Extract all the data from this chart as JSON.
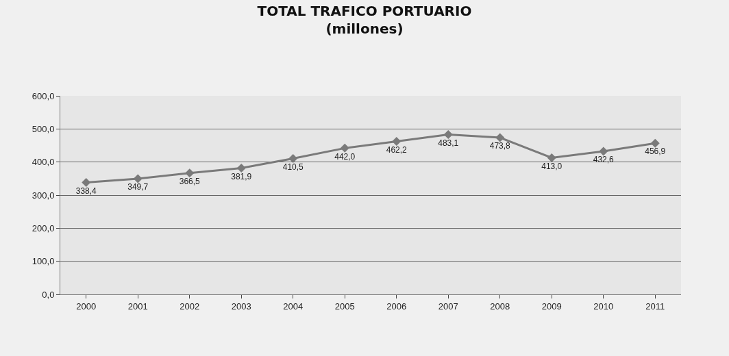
{
  "chart_data": {
    "type": "line",
    "title": "TOTAL TRAFICO PORTUARIO",
    "subtitle": "(millones)",
    "categories": [
      "2000",
      "2001",
      "2002",
      "2003",
      "2004",
      "2005",
      "2006",
      "2007",
      "2008",
      "2009",
      "2010",
      "2011"
    ],
    "series": [
      {
        "color": "#7a7a7a",
        "values": [
          338.4,
          349.7,
          366.5,
          381.9,
          410.5,
          442.0,
          462.2,
          483.1,
          473.8,
          413.0,
          432.6,
          456.9
        ],
        "value_labels": [
          "338,4",
          "349,7",
          "366,5",
          "381,9",
          "410,5",
          "442,0",
          "462,2",
          "483,1",
          "473,8",
          "413,0",
          "432,6",
          "456,9"
        ]
      }
    ],
    "ylim": [
      0,
      600
    ],
    "yticks": [
      {
        "value": 0,
        "label": "0,0"
      },
      {
        "value": 100,
        "label": "100,0"
      },
      {
        "value": 200,
        "label": "200,0"
      },
      {
        "value": 300,
        "label": "300,0"
      },
      {
        "value": 400,
        "label": "400,0"
      },
      {
        "value": 500,
        "label": "500,0"
      },
      {
        "value": 600,
        "label": "600,0"
      }
    ],
    "grid": "y",
    "marker": "diamond",
    "line_style": "solid"
  }
}
